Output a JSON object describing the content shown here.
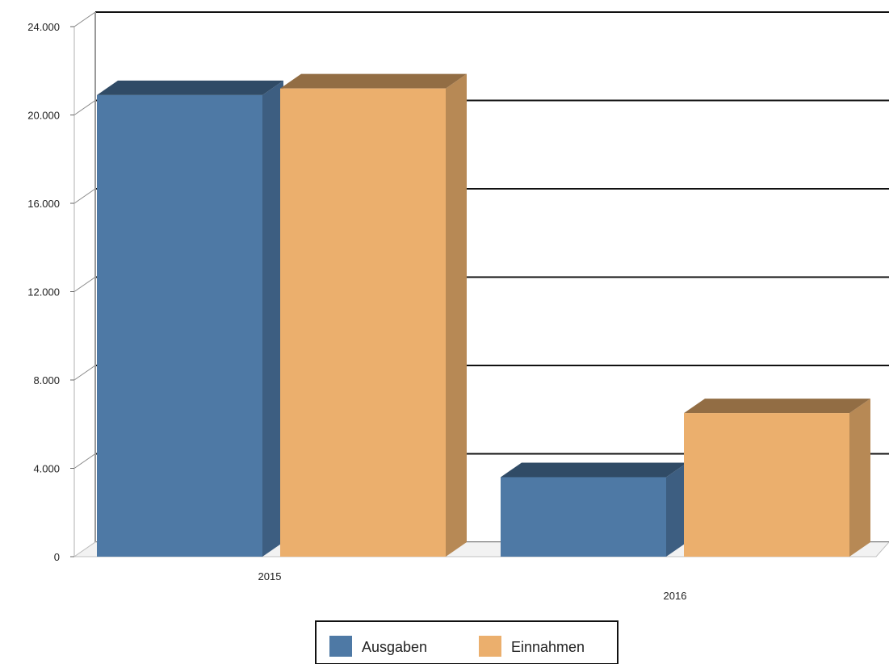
{
  "chart_data": {
    "type": "bar",
    "three_d": true,
    "categories": [
      "2015",
      "2016"
    ],
    "series": [
      {
        "name": "Ausgaben",
        "values": [
          20900,
          3600
        ]
      },
      {
        "name": "Einnahmen",
        "values": [
          21200,
          6500
        ]
      }
    ],
    "ylim": [
      0,
      24000
    ],
    "yticks": [
      "0",
      "4.000",
      "8.000",
      "12.000",
      "16.000",
      "20.000",
      "24.000"
    ],
    "grid": true,
    "legend_position": "bottom-center",
    "colors": {
      "Ausgaben": "#4e79a5",
      "Einnahmen": "#ebaf6d"
    }
  }
}
